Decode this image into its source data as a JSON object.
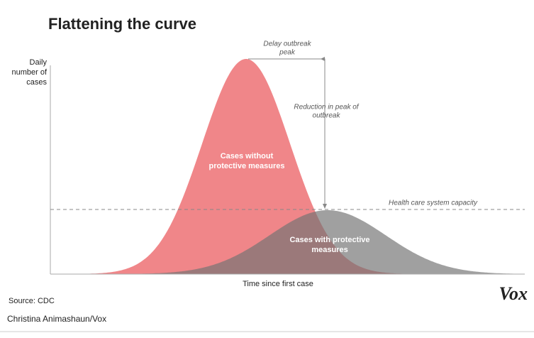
{
  "title": "Flattening the curve",
  "y_axis_label": [
    "Daily",
    "number of",
    "cases"
  ],
  "x_axis_label": "Time since first case",
  "annotations": {
    "delay": [
      "Delay outbreak",
      "peak"
    ],
    "reduction": [
      "Reduction in peak of",
      "outbreak"
    ],
    "capacity": "Health care system capacity",
    "without": [
      "Cases without",
      "protective measures"
    ],
    "with": [
      "Cases with protective",
      "measures"
    ]
  },
  "source": "Source: CDC",
  "logo": "Vox",
  "credit": "Christina Animashaun/Vox"
}
